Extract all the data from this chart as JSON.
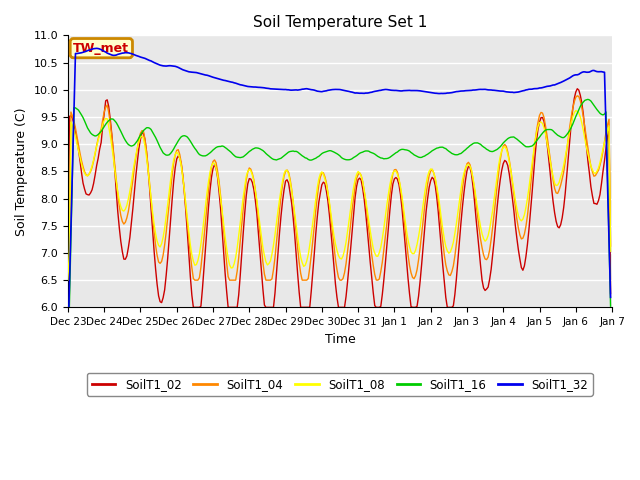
{
  "title": "Soil Temperature Set 1",
  "xlabel": "Time",
  "ylabel": "Soil Temperature (C)",
  "ylim": [
    6.0,
    11.0
  ],
  "yticks": [
    6.0,
    6.5,
    7.0,
    7.5,
    8.0,
    8.5,
    9.0,
    9.5,
    10.0,
    10.5,
    11.0
  ],
  "plot_bg_color": "#e8e8e8",
  "fig_bg_color": "#ffffff",
  "colors": {
    "SoilT1_02": "#cc0000",
    "SoilT1_04": "#ff8800",
    "SoilT1_08": "#ffff00",
    "SoilT1_16": "#00cc00",
    "SoilT1_32": "#0000ee"
  },
  "tw_met_label": "TW_met",
  "tw_met_color": "#cc0000",
  "tw_met_bg": "#ffffcc",
  "tw_met_border": "#cc8800",
  "x_tick_labels": [
    "Dec 23",
    "Dec 24",
    "Dec 25",
    "Dec 26",
    "Dec 27",
    "Dec 28",
    "Dec 29",
    "Dec 30",
    "Dec 31",
    "Jan 1",
    "Jan 2",
    "Jan 3",
    "Jan 4",
    "Jan 5",
    "Jan 6",
    "Jan 7"
  ]
}
